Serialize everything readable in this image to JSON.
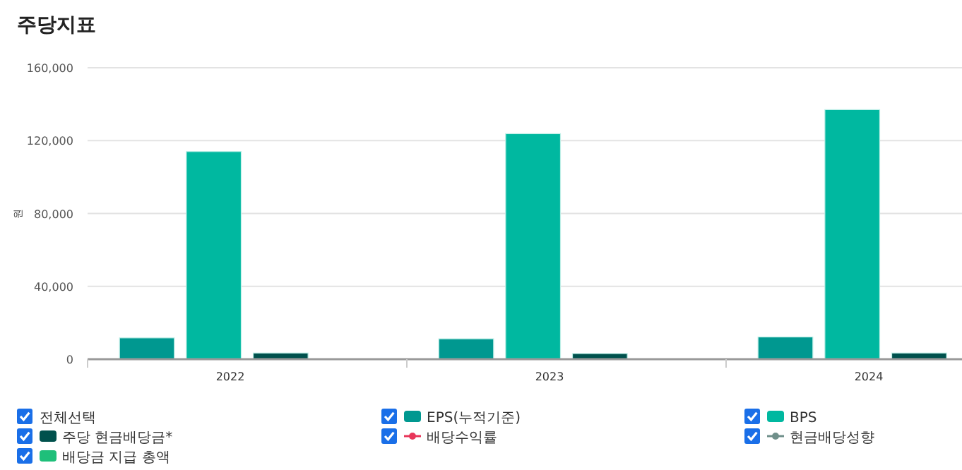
{
  "chart_data": {
    "type": "bar",
    "title": "주당지표",
    "ylabel": "원",
    "legend_title": "전체선택",
    "categories": [
      "2022",
      "2023",
      "2024"
    ],
    "series": [
      {
        "name": "EPS(누적기준)",
        "color": "#009890",
        "values": [
          11700,
          11200,
          12200
        ]
      },
      {
        "name": "BPS",
        "color": "#00b8a0",
        "values": [
          114000,
          123800,
          137000
        ]
      },
      {
        "name": "주당 현금배당금*",
        "color": "#00514d",
        "values": [
          3400,
          3100,
          3400
        ]
      },
      {
        "name": "배당수익률",
        "type": "line",
        "color": "#e8365a",
        "values": [
          null,
          null,
          null
        ]
      },
      {
        "name": "현금배당성향",
        "type": "line",
        "color": "#6f8f8a",
        "values": [
          null,
          null,
          null
        ]
      },
      {
        "name": "배당금 지급 총액",
        "color": "#1fbf7a",
        "values": [
          null,
          null,
          null
        ]
      }
    ],
    "ylim": [
      0,
      160000
    ],
    "yticks": [
      {
        "value": 0,
        "label": "0"
      },
      {
        "value": 40000,
        "label": "40,000"
      },
      {
        "value": 80000,
        "label": "80,000"
      },
      {
        "value": 120000,
        "label": "120,000"
      },
      {
        "value": 160000,
        "label": "160,000"
      }
    ],
    "grid": "y",
    "legend": "bottom",
    "marker": "circle"
  }
}
